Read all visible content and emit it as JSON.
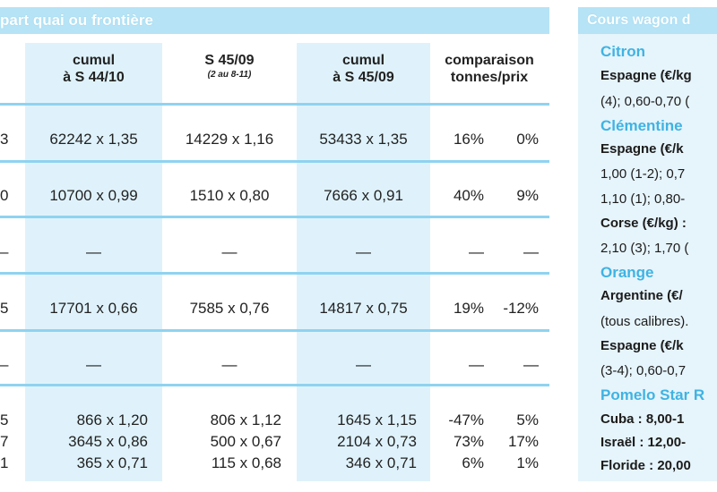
{
  "left": {
    "title": "part quai ou frontière",
    "headers": {
      "cumul_prev": [
        "cumul",
        "à S 44/10"
      ],
      "week": [
        "S 45/09",
        "(2 au 8-11)"
      ],
      "cumul_cur": [
        "cumul",
        "à S 45/09"
      ],
      "comparison": [
        "comparaison",
        "tonnes/prix"
      ]
    },
    "rows": [
      {
        "lead": "3",
        "cumul_prev": "62242 x 1,35",
        "week": "14229 x 1,16",
        "cumul_cur": "53433 x 1,35",
        "tonnes": "16%",
        "prix": "0%"
      },
      {
        "lead": "0",
        "cumul_prev": "10700 x 0,99",
        "week": "1510 x 0,80",
        "cumul_cur": "7666 x 0,91",
        "tonnes": "40%",
        "prix": "9%"
      },
      {
        "lead": "–",
        "cumul_prev": "—",
        "week": "—",
        "cumul_cur": "—",
        "tonnes": "—",
        "prix": "—"
      },
      {
        "lead": "5",
        "cumul_prev": "17701 x 0,66",
        "week": "7585 x 0,76",
        "cumul_cur": "14817 x 0,75",
        "tonnes": "19%",
        "prix": "-12%"
      },
      {
        "lead": "–",
        "cumul_prev": "—",
        "week": "—",
        "cumul_cur": "—",
        "tonnes": "—",
        "prix": "—"
      },
      {
        "lead": "5",
        "cumul_prev": "866 x 1,20",
        "week": "806 x 1,12",
        "cumul_cur": "1645 x 1,15",
        "tonnes": "-47%",
        "prix": "5%"
      },
      {
        "lead": "7",
        "cumul_prev": "3645 x 0,86",
        "week": "500 x 0,67",
        "cumul_cur": "2104 x 0,73",
        "tonnes": "73%",
        "prix": "17%"
      },
      {
        "lead": "1",
        "cumul_prev": "365 x 0,71",
        "week": "115 x 0,68",
        "cumul_cur": "346 x 0,71",
        "tonnes": "6%",
        "prix": "1%"
      }
    ]
  },
  "right": {
    "title": "Cours wagon d",
    "lines": [
      {
        "text": "Citron",
        "style": "fruit"
      },
      {
        "text": "Espagne (€/kg",
        "style": "bold"
      },
      {
        "text": "(4); 0,60-0,70 (",
        "style": "normal"
      },
      {
        "text": "Clémentine",
        "style": "fruit"
      },
      {
        "text": "Espagne (€/k",
        "style": "bold"
      },
      {
        "text": "1,00 (1-2); 0,7",
        "style": "normal"
      },
      {
        "text": "1,10 (1); 0,80-",
        "style": "normal"
      },
      {
        "text": "Corse (€/kg) :",
        "style": "bold"
      },
      {
        "text": "2,10 (3); 1,70 (",
        "style": "normal"
      },
      {
        "text": "Orange",
        "style": "fruit"
      },
      {
        "text": "Argentine (€/",
        "style": "bold"
      },
      {
        "text": "(tous calibres).",
        "style": "normal"
      },
      {
        "text": "Espagne (€/k",
        "style": "bold"
      },
      {
        "text": "(3-4); 0,60-0,7",
        "style": "normal"
      },
      {
        "text": "Pomelo Star R",
        "style": "fruit"
      },
      {
        "text": "Cuba : 8,00-1",
        "style": "bold"
      },
      {
        "text": "Israël : 12,00-",
        "style": "bold"
      },
      {
        "text": "Floride : 20,00",
        "style": "bold"
      }
    ]
  },
  "colors": {
    "header_bg": "#b6e3f5",
    "column_shade": "#dff2fb",
    "rule_line": "#8fd3f0",
    "fruit_heading": "#3fb3e3",
    "right_panel_bg": "#e6f4fb"
  }
}
